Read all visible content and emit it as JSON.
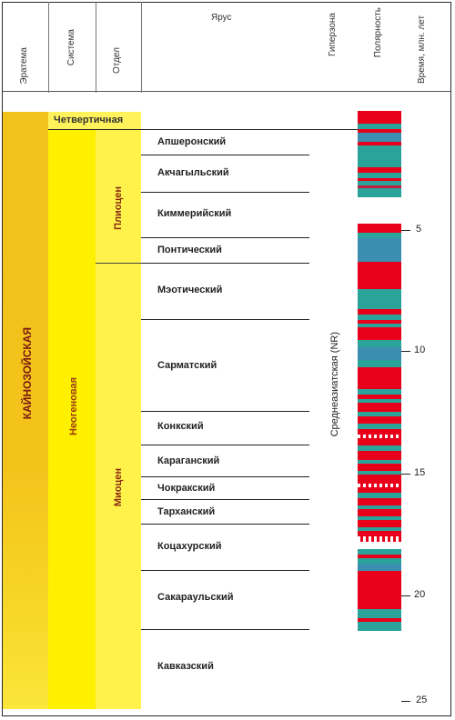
{
  "headers": {
    "erathem": "Эратема",
    "system": "Система",
    "series": "Отдел",
    "stage": "Ярус",
    "hyperzone": "Гиперзона",
    "polarity": "Полярность",
    "time": "Время, млн. лет"
  },
  "erathem": "КАЙНОЗОЙСКАЯ",
  "systems": {
    "quaternary": "Четвертичная",
    "neogene": "Неогеновая"
  },
  "series": {
    "pliocene": "Плиоцен",
    "miocene": "Миоцен"
  },
  "hyperzone": "Среднеазиатская (NR)",
  "stages": [
    "Апшеронский",
    "Акчагыльский",
    "Киммерийский",
    "Понтический",
    "Мэотический",
    "Сарматский",
    "Конкский",
    "Караганский",
    "Чокракский",
    "Тарханский",
    "Коцахурский",
    "Сакараульский",
    "Кавказский"
  ],
  "time_ticks": [
    "5",
    "10",
    "15",
    "20",
    "25"
  ],
  "colors": {
    "erathem_fill": "#f2c21d",
    "system_fill": "#ffee00",
    "series_fill": "#fff25a",
    "normal_polarity": "#e8001a",
    "reversed_polarity": "#2aa39a"
  }
}
